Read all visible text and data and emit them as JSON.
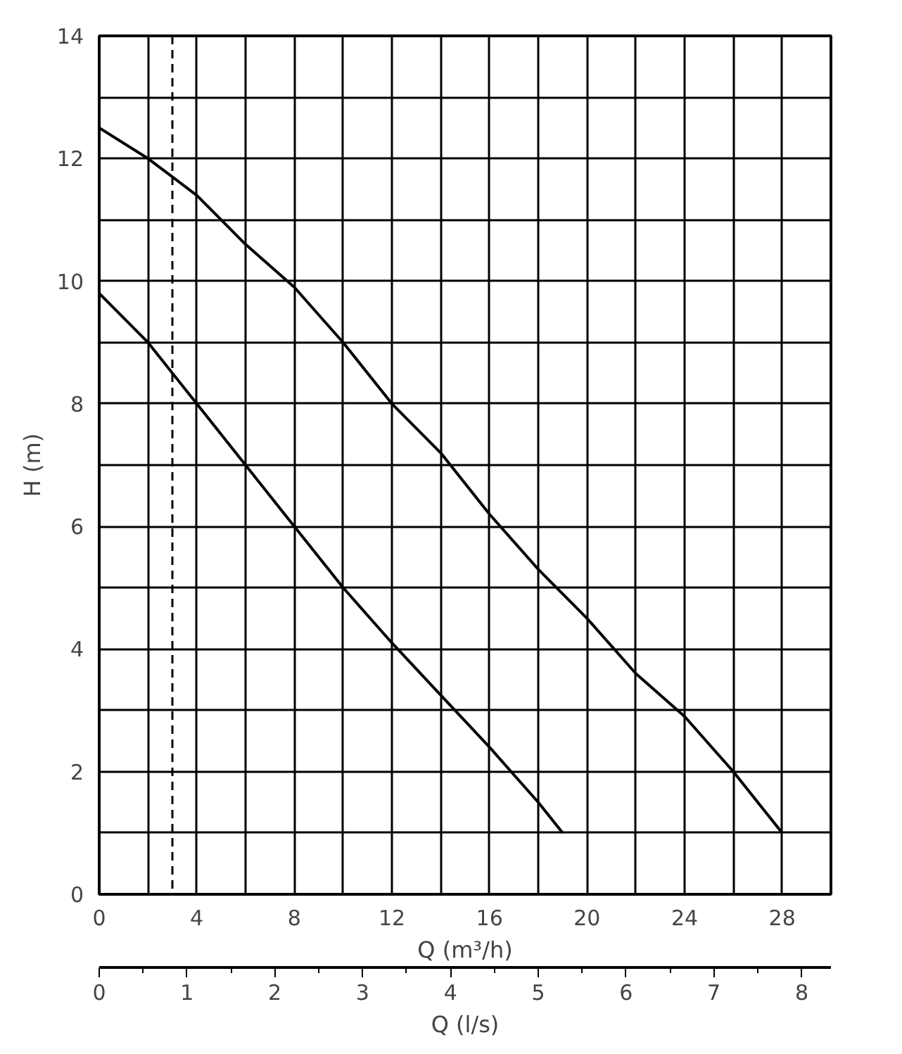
{
  "chart_data": {
    "type": "line",
    "xlabel": "Q (m³/h)",
    "ylabel": "H (m)",
    "x2label": "Q (l/s)",
    "xlim": [
      0,
      30
    ],
    "ylim": [
      0,
      14
    ],
    "xticks": [
      0,
      {
        "value": 2,
        "label": null
      },
      4,
      {
        "value": 6,
        "label": null
      },
      8,
      {
        "value": 10,
        "label": null
      },
      12,
      {
        "value": 14,
        "label": null
      },
      16,
      {
        "value": 18,
        "label": null
      },
      20,
      {
        "value": 22,
        "label": null
      },
      24,
      {
        "value": 26,
        "label": null
      },
      28,
      {
        "value": 30,
        "label": null
      }
    ],
    "yticks": [
      0,
      {
        "value": 1,
        "label": null
      },
      2,
      {
        "value": 3,
        "label": null
      },
      4,
      {
        "value": 5,
        "label": null
      },
      6,
      {
        "value": 7,
        "label": null
      },
      8,
      {
        "value": 9,
        "label": null
      },
      10,
      {
        "value": 11,
        "label": null
      },
      12,
      {
        "value": 13,
        "label": null
      },
      14
    ],
    "x2lim": [
      0,
      8.333
    ],
    "x2ticks": [
      0,
      1,
      2,
      3,
      4,
      5,
      6,
      7,
      8
    ],
    "grid": true,
    "marker": "none",
    "line_style": "solid",
    "series": [
      {
        "color": "#000000",
        "x": [
          0,
          2,
          4,
          6,
          8,
          10,
          12,
          14,
          16,
          18,
          19
        ],
        "values": [
          9.8,
          9.0,
          8.0,
          7.0,
          6.0,
          5.0,
          4.1,
          3.25,
          2.4,
          1.5,
          1.0
        ]
      },
      {
        "color": "#000000",
        "x": [
          0,
          2,
          3,
          4,
          5,
          6,
          8,
          10,
          12,
          14,
          16,
          18,
          20,
          22,
          24,
          26,
          28
        ],
        "values": [
          12.5,
          12.0,
          11.7,
          11.4,
          11.0,
          10.6,
          9.9,
          9.0,
          8.0,
          7.2,
          6.2,
          5.3,
          4.5,
          3.6,
          2.9,
          2.0,
          1.0
        ]
      }
    ],
    "ref_lines": [
      {
        "axis": "x",
        "value": 3,
        "line_style": "dashed",
        "color": "#000000"
      }
    ]
  }
}
